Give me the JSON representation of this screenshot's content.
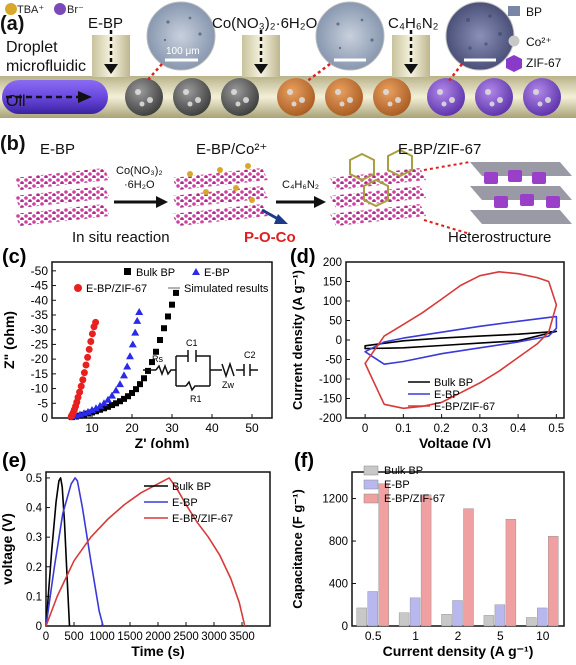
{
  "panel_a": {
    "label": "(a)",
    "legend_tba": "TBA⁺",
    "legend_br": "Br⁻",
    "droplet_label_1": "Droplet",
    "droplet_label_2": "microfluidic",
    "oil_label": "Oil",
    "inlet1": "E-BP",
    "inlet2": "Co(NO₃)₂·6H₂O",
    "inlet3": "C₄H₆N₂",
    "scale_bar": "100 μm",
    "legend_right": [
      "BP",
      "Co²⁺",
      "ZIF-67"
    ]
  },
  "panel_b": {
    "label": "(b)",
    "stage1": "E-BP",
    "stage2": "E-BP/Co²⁺",
    "stage3": "E-BP/ZIF-67",
    "reagent1_line1": "Co(NO₃)₂",
    "reagent1_line2": "·6H₂O",
    "reagent2": "C₄H₆N₂",
    "caption1": "In situ reaction",
    "caption2": "P-O-Co",
    "caption3": "Heterostructure"
  },
  "chart_data": [
    {
      "panel": "(c)",
      "type": "scatter",
      "xlabel": "Z' (ohm)",
      "ylabel": "Z\" (ohm)",
      "xlim": [
        0,
        55
      ],
      "ylim": [
        0,
        -53
      ],
      "xticks": [
        10,
        20,
        30,
        40,
        50
      ],
      "yticks": [
        0,
        -5,
        -10,
        -15,
        -20,
        -25,
        -30,
        -35,
        -40,
        -45,
        -50
      ],
      "legend": [
        "Bulk BP",
        "E-BP",
        "E-BP/ZIF-67",
        "Simulated results"
      ],
      "circuit_labels": [
        "Rs",
        "C1",
        "R1",
        "Zw",
        "C2"
      ],
      "series": [
        {
          "name": "Bulk BP",
          "marker": "square",
          "color": "#000000",
          "x": [
            5,
            6,
            7,
            8,
            9,
            10,
            11,
            12,
            13,
            14,
            15,
            16,
            17,
            18,
            19,
            20,
            21,
            22,
            23,
            24,
            25,
            26,
            27,
            28,
            29,
            30,
            31
          ],
          "y": [
            -0.3,
            -0.5,
            -0.8,
            -1.1,
            -1.5,
            -1.9,
            -2.3,
            -2.8,
            -3.3,
            -3.8,
            -4.4,
            -5.0,
            -5.7,
            -6.5,
            -7.4,
            -8.5,
            -9.8,
            -11.5,
            -13.5,
            -16,
            -19,
            -22.5,
            -26.5,
            -30.5,
            -34.5,
            -38.5,
            -42.5
          ]
        },
        {
          "name": "E-BP",
          "marker": "triangle",
          "color": "#2a2ae8",
          "x": [
            5,
            6,
            7,
            8,
            9,
            10,
            11,
            12,
            13,
            14,
            15,
            16,
            17,
            18,
            18.8,
            19.5,
            20.2,
            20.8,
            21.3,
            21.8
          ],
          "y": [
            -0.5,
            -0.8,
            -1.2,
            -1.6,
            -2.1,
            -2.7,
            -3.3,
            -4.1,
            -5.0,
            -6.2,
            -7.6,
            -9.4,
            -11.5,
            -14.5,
            -17.5,
            -21,
            -25,
            -29,
            -33,
            -36
          ]
        },
        {
          "name": "E-BP/ZIF-67",
          "marker": "circle",
          "color": "#e82020",
          "x": [
            4.8,
            5.0,
            5.3,
            5.6,
            5.9,
            6.2,
            6.5,
            6.9,
            7.3,
            7.7,
            8.1,
            8.5,
            8.9,
            9.3,
            9.7,
            10.1,
            10.5,
            10.9
          ],
          "y": [
            -0.5,
            -1.0,
            -1.8,
            -2.8,
            -4.0,
            -5.4,
            -7.0,
            -8.8,
            -10.8,
            -13.0,
            -15.4,
            -18.0,
            -20.6,
            -23.3,
            -26.0,
            -28.6,
            -31.0,
            -32.5
          ]
        }
      ]
    },
    {
      "panel": "(d)",
      "type": "line",
      "xlabel": "Voltage (V)",
      "ylabel": "Current density (A g⁻¹)",
      "xlim": [
        -0.05,
        0.52
      ],
      "ylim": [
        -200,
        200
      ],
      "xticks": [
        0.0,
        0.1,
        0.2,
        0.3,
        0.4,
        0.5
      ],
      "yticks": [
        -200,
        -150,
        -100,
        -50,
        0,
        50,
        100,
        150,
        200
      ],
      "legend": [
        "Bulk BP",
        "E-BP",
        "E-BP/ZIF-67"
      ],
      "series": [
        {
          "name": "Bulk BP",
          "color": "#000000",
          "upper": {
            "x": [
              0.0,
              0.1,
              0.2,
              0.3,
              0.4,
              0.5
            ],
            "y": [
              -15,
              -2,
              5,
              10,
              15,
              22
            ]
          },
          "lower": {
            "x": [
              0.5,
              0.4,
              0.3,
              0.2,
              0.1,
              0.0
            ],
            "y": [
              22,
              -2,
              -8,
              -14,
              -20,
              -22
            ]
          }
        },
        {
          "name": "E-BP",
          "color": "#3a3ad8",
          "upper": {
            "x": [
              0.0,
              0.05,
              0.1,
              0.2,
              0.3,
              0.4,
              0.48,
              0.5
            ],
            "y": [
              -30,
              -5,
              5,
              20,
              35,
              48,
              58,
              60
            ]
          },
          "lower": {
            "x": [
              0.5,
              0.48,
              0.4,
              0.3,
              0.2,
              0.1,
              0.05,
              0.0
            ],
            "y": [
              30,
              10,
              -5,
              -20,
              -35,
              -55,
              -62,
              -30
            ]
          }
        },
        {
          "name": "E-BP/ZIF-67",
          "color": "#d83a3a",
          "upper": {
            "x": [
              0.0,
              0.05,
              0.1,
              0.15,
              0.2,
              0.25,
              0.3,
              0.35,
              0.4,
              0.45,
              0.48,
              0.5
            ],
            "y": [
              -60,
              10,
              40,
              70,
              105,
              140,
              165,
              175,
              170,
              160,
              150,
              90
            ]
          },
          "lower": {
            "x": [
              0.5,
              0.48,
              0.45,
              0.4,
              0.35,
              0.3,
              0.25,
              0.2,
              0.15,
              0.1,
              0.05,
              0.0
            ],
            "y": [
              90,
              20,
              -10,
              -45,
              -80,
              -110,
              -135,
              -160,
              -170,
              -175,
              -165,
              -60
            ]
          }
        }
      ]
    },
    {
      "panel": "(e)",
      "type": "line",
      "xlabel": "Time (s)",
      "ylabel": "voltage (V)",
      "xlim": [
        0,
        4000
      ],
      "ylim": [
        0,
        0.52
      ],
      "xticks": [
        0,
        500,
        1000,
        1500,
        2000,
        2500,
        3000,
        3500
      ],
      "yticks": [
        0.0,
        0.1,
        0.2,
        0.3,
        0.4,
        0.5
      ],
      "legend": [
        "Bulk BP",
        "E-BP",
        "E-BP/ZIF-67"
      ],
      "series": [
        {
          "name": "Bulk BP",
          "color": "#000000",
          "x": [
            0,
            100,
            180,
            230,
            260,
            290,
            330,
            380,
            420
          ],
          "y": [
            0,
            0.25,
            0.42,
            0.49,
            0.5,
            0.47,
            0.35,
            0.15,
            0
          ]
        },
        {
          "name": "E-BP",
          "color": "#3a3ad8",
          "x": [
            0,
            150,
            300,
            450,
            520,
            560,
            650,
            800,
            950,
            1020
          ],
          "y": [
            0,
            0.2,
            0.38,
            0.48,
            0.5,
            0.49,
            0.4,
            0.22,
            0.05,
            0
          ]
        },
        {
          "name": "E-BP/ZIF-67",
          "color": "#d83a3a",
          "x": [
            0,
            200,
            500,
            800,
            1100,
            1400,
            1700,
            2000,
            2200,
            2350,
            2500,
            2700,
            2900,
            3100,
            3300,
            3450,
            3550
          ],
          "y": [
            0,
            0.1,
            0.22,
            0.3,
            0.36,
            0.41,
            0.45,
            0.48,
            0.5,
            0.46,
            0.41,
            0.35,
            0.3,
            0.24,
            0.16,
            0.08,
            0
          ]
        }
      ]
    },
    {
      "panel": "(f)",
      "type": "bar",
      "xlabel": "Current density (A g⁻¹)",
      "ylabel": "Capacitance (F g⁻¹)",
      "ylim": [
        0,
        1450
      ],
      "yticks": [
        0,
        400,
        800,
        1200
      ],
      "categories": [
        "0.5",
        "1",
        "2",
        "5",
        "10"
      ],
      "series": [
        {
          "name": "Bulk BP",
          "color": "#c8c8c8",
          "values": [
            170,
            125,
            110,
            100,
            80
          ]
        },
        {
          "name": "E-BP",
          "color": "#b8b8ee",
          "values": [
            325,
            265,
            240,
            200,
            170
          ]
        },
        {
          "name": "E-BP/ZIF-67",
          "color": "#f0a0a0",
          "values": [
            1340,
            1235,
            1105,
            1005,
            845
          ]
        }
      ]
    }
  ]
}
